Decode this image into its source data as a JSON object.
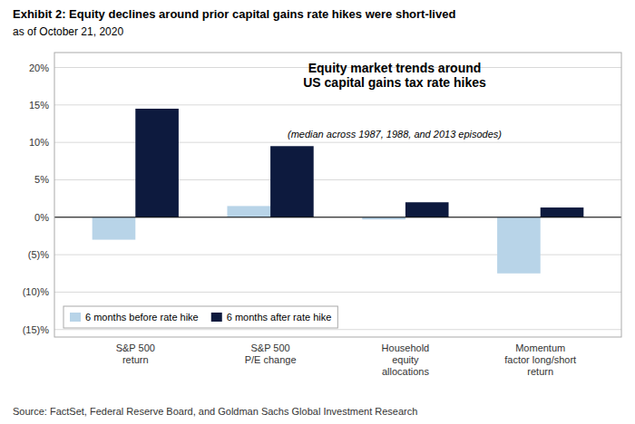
{
  "chart_data": {
    "type": "bar",
    "title": "Exhibit 2: Equity declines around prior capital gains rate hikes were short-lived",
    "subtitle": "as of October 21, 2020",
    "annotations": [
      "Equity market trends around",
      "US capital gains tax rate hikes",
      "(median across 1987, 1988, and 2013 episodes)",
      "Source: FactSet, Federal Reserve Board, and Goldman Sachs Global Investment Research"
    ],
    "categories": [
      "S&P 500\nreturn",
      "S&P 500\nP/E change",
      "Household\nequity\nallocations",
      "Momentum\nfactor long/short\nreturn"
    ],
    "series": [
      {
        "name": "6 months before rate hike",
        "color": "#b8d4e8",
        "values": [
          -3.0,
          1.5,
          -0.3,
          -7.5
        ]
      },
      {
        "name": "6 months after rate hike",
        "color": "#0d1a3e",
        "values": [
          14.5,
          9.5,
          2.0,
          1.3
        ]
      }
    ],
    "ylim": [
      -16,
      22
    ],
    "yticks": [
      {
        "value": -15,
        "label": "(15)%"
      },
      {
        "value": -10,
        "label": "(10)%"
      },
      {
        "value": -5,
        "label": "(5)%"
      },
      {
        "value": 0,
        "label": "0%"
      },
      {
        "value": 5,
        "label": "5%"
      },
      {
        "value": 10,
        "label": "10%"
      },
      {
        "value": 15,
        "label": "15%"
      },
      {
        "value": 20,
        "label": "20%"
      }
    ],
    "grid": true,
    "legend": "lower left"
  }
}
